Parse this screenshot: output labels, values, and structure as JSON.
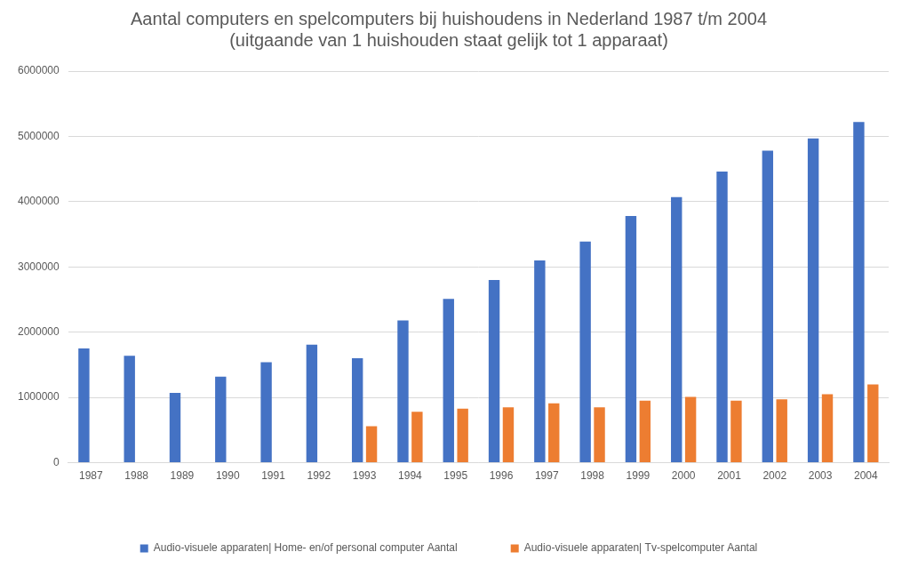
{
  "chart_data": {
    "type": "bar",
    "title": "Aantal computers en spelcomputers bij huishoudens in Nederland 1987 t/m 2004",
    "subtitle": "(uitgaande van 1 huishouden staat gelijk tot 1 apparaat)",
    "categories": [
      "1987",
      "1988",
      "1989",
      "1990",
      "1991",
      "1992",
      "1993",
      "1994",
      "1995",
      "1996",
      "1997",
      "1998",
      "1999",
      "2000",
      "2001",
      "2002",
      "2003",
      "2004"
    ],
    "series": [
      {
        "name": "Audio-visuele apparaten| Home- en/of personal computer Aantal",
        "color": "#4472c4",
        "values": [
          1750000,
          1640000,
          1070000,
          1320000,
          1540000,
          1810000,
          1600000,
          2180000,
          2510000,
          2800000,
          3100000,
          3390000,
          3780000,
          4070000,
          4460000,
          4780000,
          4970000,
          5220000
        ]
      },
      {
        "name": "Audio-visuele apparaten| Tv-spelcomputer Aantal",
        "color": "#ed7d31",
        "values": [
          null,
          null,
          null,
          null,
          null,
          null,
          560000,
          780000,
          830000,
          850000,
          910000,
          850000,
          950000,
          1010000,
          950000,
          970000,
          1050000,
          1200000
        ]
      }
    ],
    "ylim": [
      0,
      6000000
    ],
    "yticks": [
      0,
      1000000,
      2000000,
      3000000,
      4000000,
      5000000,
      6000000
    ],
    "grid": true,
    "legend": "bottom"
  }
}
